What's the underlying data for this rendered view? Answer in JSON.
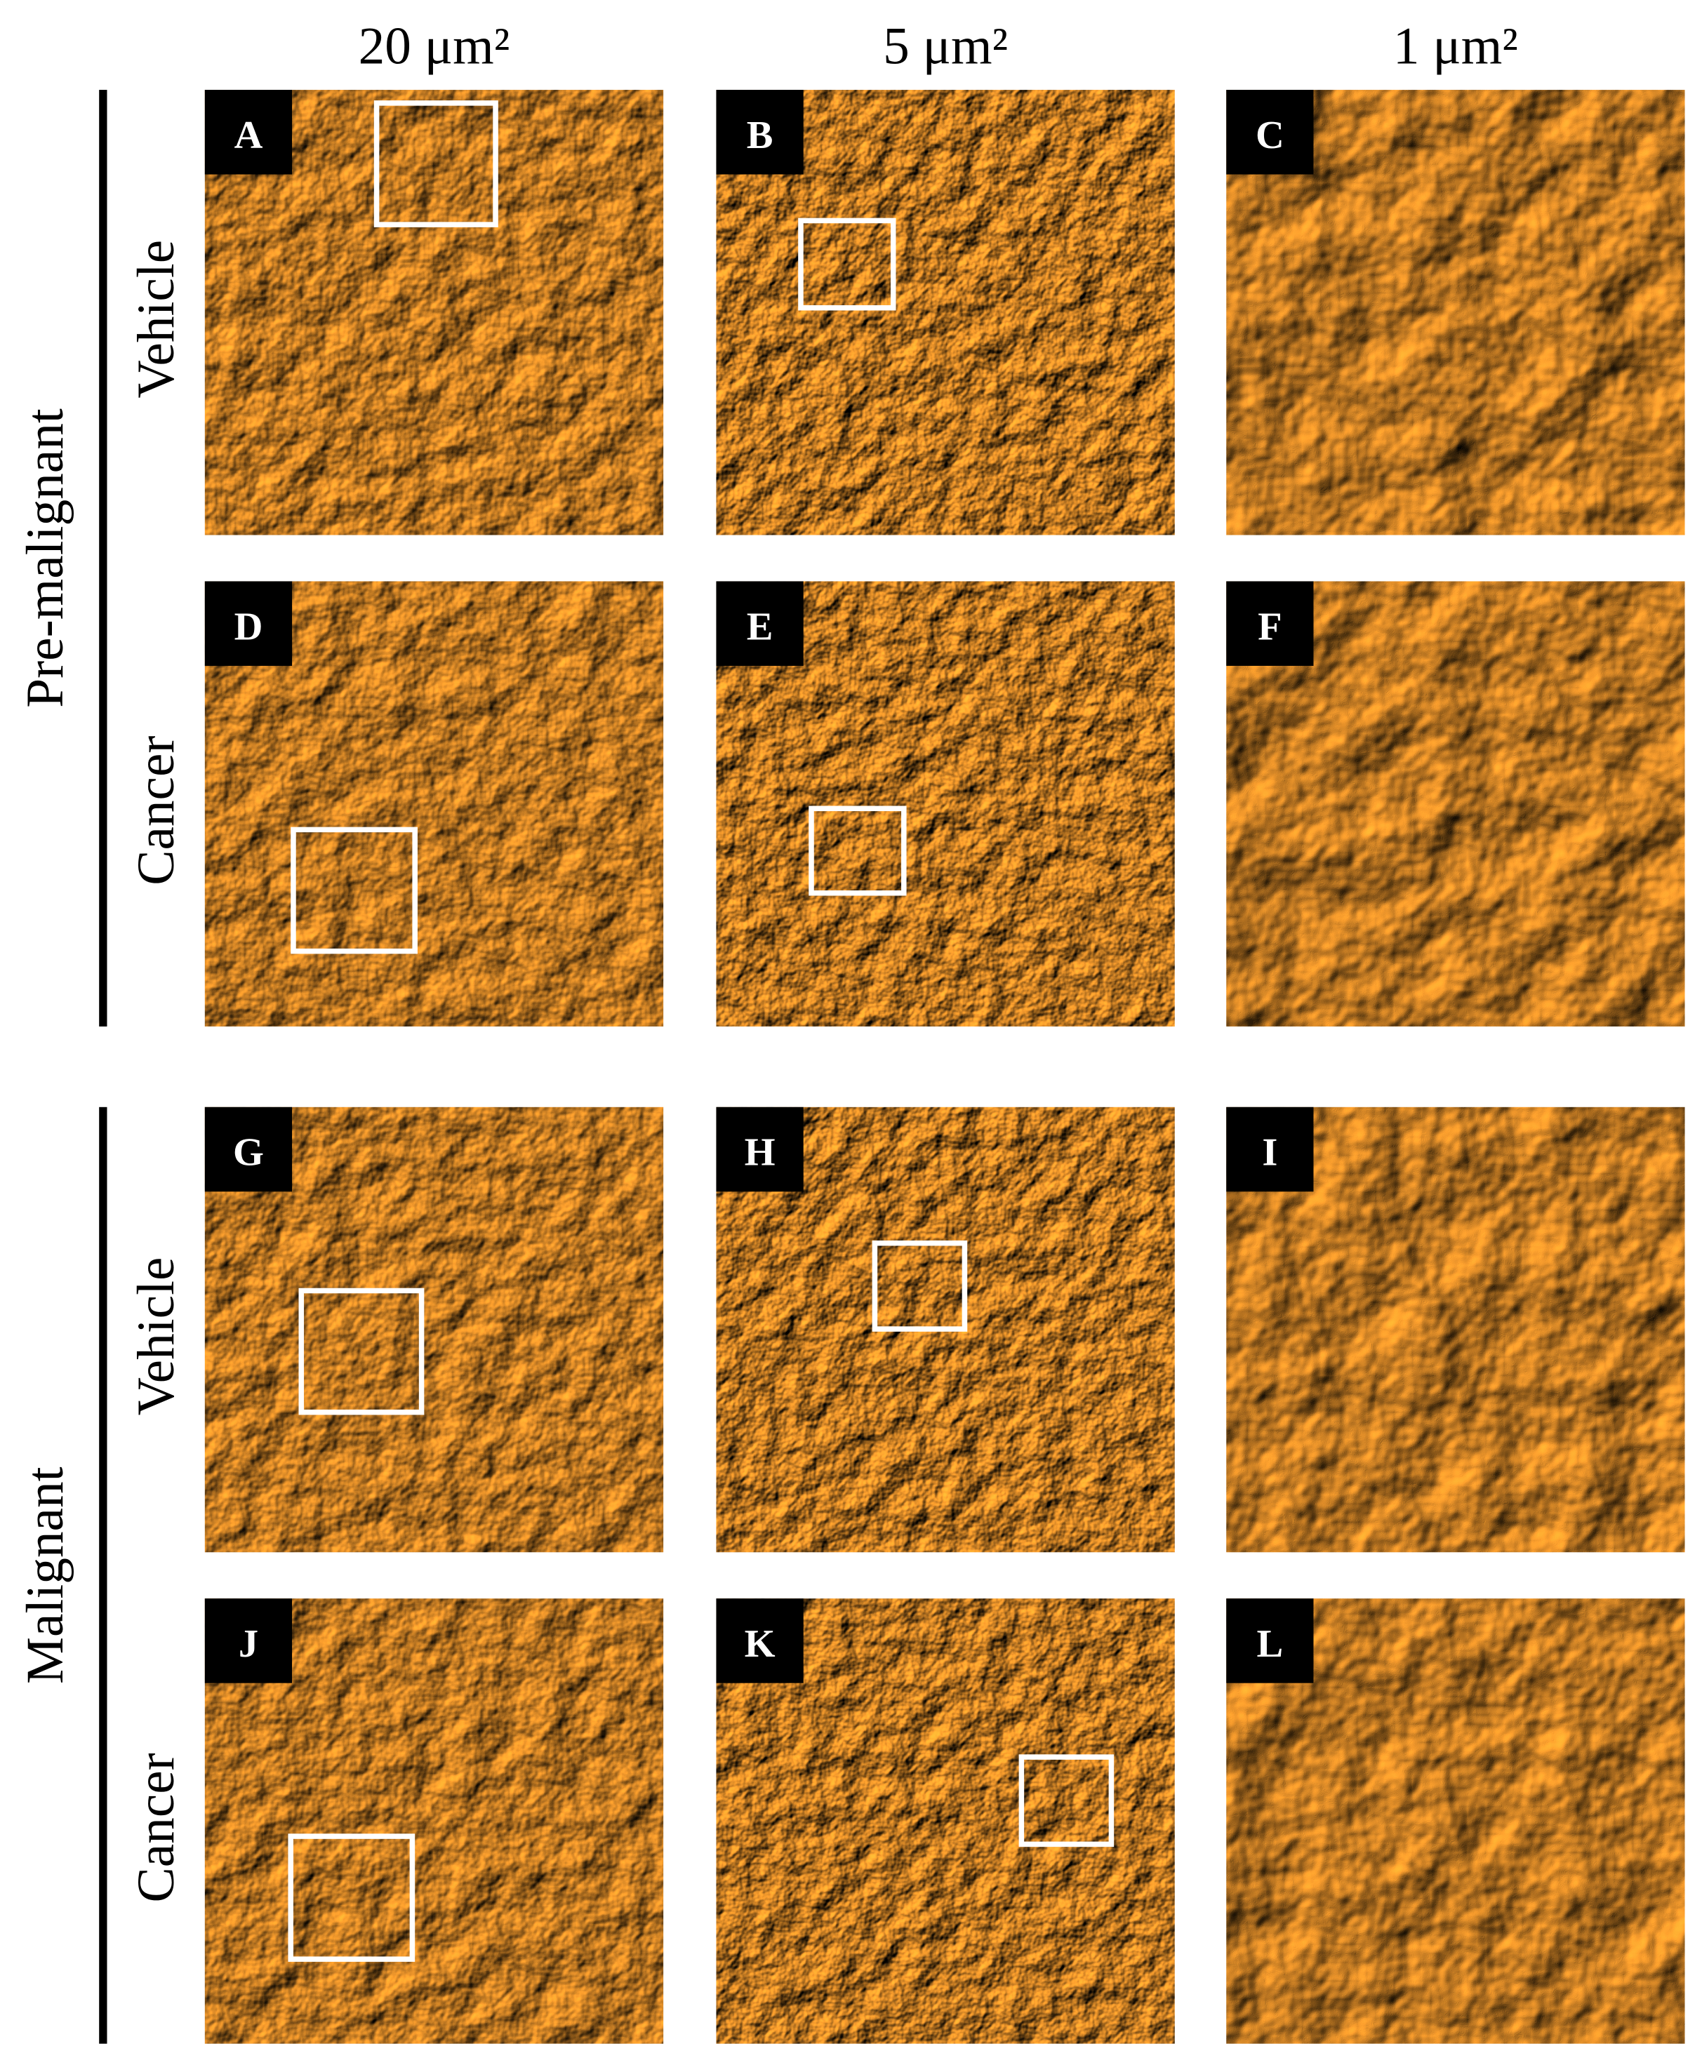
{
  "column_headers": [
    "20 μm²",
    "5 μm²",
    "1 μm²"
  ],
  "groups": [
    {
      "label": "Pre-malignant",
      "rows": [
        {
          "label": "Vehicle",
          "panels": [
            "A",
            "B",
            "C"
          ]
        },
        {
          "label": "Cancer",
          "panels": [
            "D",
            "E",
            "F"
          ]
        }
      ]
    },
    {
      "label": "Malignant",
      "rows": [
        {
          "label": "Vehicle",
          "panels": [
            "G",
            "H",
            "I"
          ]
        },
        {
          "label": "Cancer",
          "panels": [
            "J",
            "K",
            "L"
          ]
        }
      ]
    }
  ]
}
